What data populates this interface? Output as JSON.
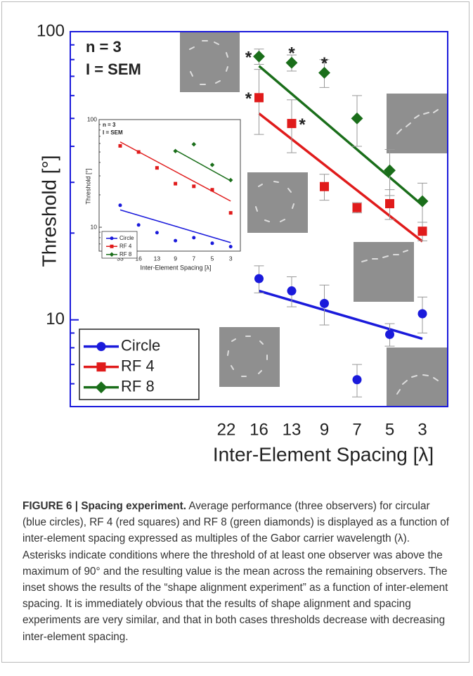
{
  "chart_data": [
    {
      "type": "scatter",
      "log_y": true,
      "ylabel": "Threshold [°]",
      "xlabel": "Inter-Element Spacing [λ]",
      "categories": [
        "22",
        "16",
        "13",
        "9",
        "7",
        "5",
        "3"
      ],
      "ylim": [
        5,
        100
      ],
      "yticks": [
        10,
        100
      ],
      "texts": [
        "n = 3",
        "I = SEM"
      ],
      "series": [
        {
          "name": "Circle",
          "color": "#1a1adb",
          "marker": "circle",
          "values": [
            null,
            13.9,
            12.6,
            11.4,
            6.2,
            8.9,
            10.5
          ],
          "errors": [
            null,
            1.5,
            1.5,
            1.8,
            0.8,
            0.8,
            1.5
          ],
          "fit": [
            12.6,
            8.6
          ]
        },
        {
          "name": "RF 4",
          "color": "#e01b1b",
          "marker": "square",
          "values": [
            null,
            59,
            48,
            29,
            24.5,
            25.3,
            20.3
          ],
          "errors": [
            null,
            15,
            10,
            3,
            1,
            3,
            1.5
          ],
          "fit": [
            52,
            18.7
          ]
        },
        {
          "name": "RF 8",
          "color": "#1a6e1a",
          "marker": "diamond",
          "values": [
            null,
            82,
            78,
            72,
            50,
            33,
            25.8
          ],
          "errors": [
            null,
            5,
            5,
            8,
            10,
            6,
            4
          ],
          "fit": [
            76,
            25
          ]
        }
      ],
      "annotations": [
        {
          "label": "*",
          "series": 2,
          "category": "16",
          "side": "left"
        },
        {
          "label": "*",
          "series": 2,
          "category": "13",
          "side": "above"
        },
        {
          "label": "*",
          "series": 2,
          "category": "9",
          "side": "above"
        },
        {
          "label": "*",
          "series": 1,
          "category": "16",
          "side": "left"
        },
        {
          "label": "*",
          "series": 1,
          "category": "13",
          "side": "right"
        }
      ]
    },
    {
      "type": "scatter",
      "log_y": true,
      "ylabel": "Threshold [°]",
      "xlabel": "Inter-Element Spacing [λ]",
      "categories": [
        "33",
        "16",
        "13",
        "9",
        "7",
        "5",
        "3"
      ],
      "ylim": [
        6,
        100
      ],
      "yticks": [
        10,
        100
      ],
      "texts": [
        "n = 3",
        "I = SEM"
      ],
      "series": [
        {
          "name": "Circle",
          "color": "#1a1adb",
          "marker": "circle",
          "values": [
            16,
            10.5,
            8.9,
            7.5,
            8,
            7.1,
            6.6
          ],
          "fit": [
            14.5,
            7.2
          ]
        },
        {
          "name": "RF 4",
          "color": "#e01b1b",
          "marker": "square",
          "values": [
            57,
            50,
            35.6,
            25.4,
            24,
            22.3,
            13.6
          ],
          "fit": [
            62,
            17.5
          ]
        },
        {
          "name": "RF 8",
          "color": "#1a6e1a",
          "marker": "diamond",
          "values": [
            null,
            null,
            null,
            51,
            59,
            38,
            27.4
          ],
          "fit": [
            52,
            27
          ]
        }
      ]
    }
  ],
  "caption": {
    "label": "FIGURE 6 | Spacing experiment.",
    "text": "Average performance (three observers) for circular (blue circles), RF 4 (red squares) and RF 8 (green diamonds) is displayed as a function of inter-element spacing expressed as multiples of the Gabor carrier wavelength (λ). Asterisks indicate conditions where the threshold of at least one observer was above the maximum of 90° and the resulting value is the mean across the remaining observers. The inset shows the results of the “shape alignment experiment” as a function of inter-element spacing. It is immediately obvious that the results of shape alignment and spacing experiments are very similar, and that in both cases thresholds decrease with decreasing inter-element spacing."
  }
}
